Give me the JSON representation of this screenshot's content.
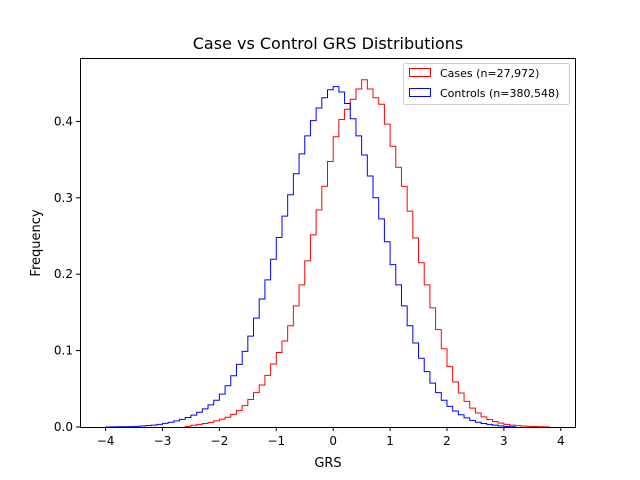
{
  "chart_data": {
    "type": "histogram",
    "title": "Case vs Control GRS Distributions",
    "xlabel": "GRS",
    "ylabel": "Frequency",
    "xlim": [
      -4.45,
      4.25
    ],
    "ylim": [
      0,
      0.483
    ],
    "xticks": [
      -4,
      -3,
      -2,
      -1,
      0,
      1,
      2,
      3,
      4
    ],
    "yticks": [
      0.0,
      0.1,
      0.2,
      0.3,
      0.4
    ],
    "legend_position": "top-right",
    "series": [
      {
        "name": "Cases (n=27,972)",
        "color": "#ff0000",
        "points": [
          [
            -2.6,
            0.0
          ],
          [
            -2.4,
            0.003
          ],
          [
            -2.2,
            0.005
          ],
          [
            -2.0,
            0.009
          ],
          [
            -1.8,
            0.014
          ],
          [
            -1.6,
            0.024
          ],
          [
            -1.4,
            0.04
          ],
          [
            -1.2,
            0.06
          ],
          [
            -1.0,
            0.09
          ],
          [
            -0.8,
            0.12
          ],
          [
            -0.7,
            0.145
          ],
          [
            -0.6,
            0.172
          ],
          [
            -0.5,
            0.2
          ],
          [
            -0.4,
            0.235
          ],
          [
            -0.3,
            0.268
          ],
          [
            -0.2,
            0.3
          ],
          [
            -0.1,
            0.33
          ],
          [
            0.0,
            0.365
          ],
          [
            0.1,
            0.395
          ],
          [
            0.2,
            0.41
          ],
          [
            0.3,
            0.422
          ],
          [
            0.4,
            0.436
          ],
          [
            0.5,
            0.449
          ],
          [
            0.6,
            0.46
          ],
          [
            0.7,
            0.425
          ],
          [
            0.8,
            0.437
          ],
          [
            0.9,
            0.408
          ],
          [
            1.0,
            0.385
          ],
          [
            1.1,
            0.35
          ],
          [
            1.2,
            0.33
          ],
          [
            1.3,
            0.3
          ],
          [
            1.4,
            0.265
          ],
          [
            1.5,
            0.23
          ],
          [
            1.6,
            0.2
          ],
          [
            1.7,
            0.172
          ],
          [
            1.8,
            0.14
          ],
          [
            1.9,
            0.115
          ],
          [
            2.0,
            0.09
          ],
          [
            2.1,
            0.068
          ],
          [
            2.2,
            0.05
          ],
          [
            2.4,
            0.028
          ],
          [
            2.6,
            0.015
          ],
          [
            2.8,
            0.008
          ],
          [
            3.0,
            0.004
          ],
          [
            3.2,
            0.002
          ],
          [
            3.4,
            0.001
          ],
          [
            3.6,
            0.0005
          ],
          [
            3.8,
            0.0
          ]
        ]
      },
      {
        "name": "Controls (n=380,548)",
        "color": "#0000ff",
        "points": [
          [
            -4.0,
            0.0
          ],
          [
            -3.5,
            0.0005
          ],
          [
            -3.2,
            0.002
          ],
          [
            -3.0,
            0.004
          ],
          [
            -2.8,
            0.007
          ],
          [
            -2.6,
            0.011
          ],
          [
            -2.4,
            0.017
          ],
          [
            -2.2,
            0.026
          ],
          [
            -2.0,
            0.038
          ],
          [
            -1.9,
            0.048
          ],
          [
            -1.8,
            0.06
          ],
          [
            -1.7,
            0.074
          ],
          [
            -1.6,
            0.09
          ],
          [
            -1.5,
            0.108
          ],
          [
            -1.4,
            0.13
          ],
          [
            -1.3,
            0.155
          ],
          [
            -1.2,
            0.18
          ],
          [
            -1.1,
            0.205
          ],
          [
            -1.0,
            0.234
          ],
          [
            -0.9,
            0.262
          ],
          [
            -0.8,
            0.29
          ],
          [
            -0.7,
            0.318
          ],
          [
            -0.6,
            0.345
          ],
          [
            -0.5,
            0.37
          ],
          [
            -0.4,
            0.392
          ],
          [
            -0.3,
            0.41
          ],
          [
            -0.2,
            0.425
          ],
          [
            -0.1,
            0.437
          ],
          [
            0.0,
            0.446
          ],
          [
            0.1,
            0.445
          ],
          [
            0.2,
            0.432
          ],
          [
            0.3,
            0.415
          ],
          [
            0.4,
            0.392
          ],
          [
            0.5,
            0.37
          ],
          [
            0.6,
            0.342
          ],
          [
            0.7,
            0.315
          ],
          [
            0.8,
            0.285
          ],
          [
            0.9,
            0.26
          ],
          [
            1.0,
            0.225
          ],
          [
            1.1,
            0.2
          ],
          [
            1.2,
            0.172
          ],
          [
            1.3,
            0.145
          ],
          [
            1.4,
            0.12
          ],
          [
            1.5,
            0.1
          ],
          [
            1.6,
            0.08
          ],
          [
            1.7,
            0.065
          ],
          [
            1.8,
            0.05
          ],
          [
            2.0,
            0.03
          ],
          [
            2.2,
            0.018
          ],
          [
            2.4,
            0.01
          ],
          [
            2.6,
            0.005
          ],
          [
            2.8,
            0.003
          ],
          [
            3.0,
            0.001
          ],
          [
            3.2,
            0.0
          ]
        ]
      }
    ]
  }
}
